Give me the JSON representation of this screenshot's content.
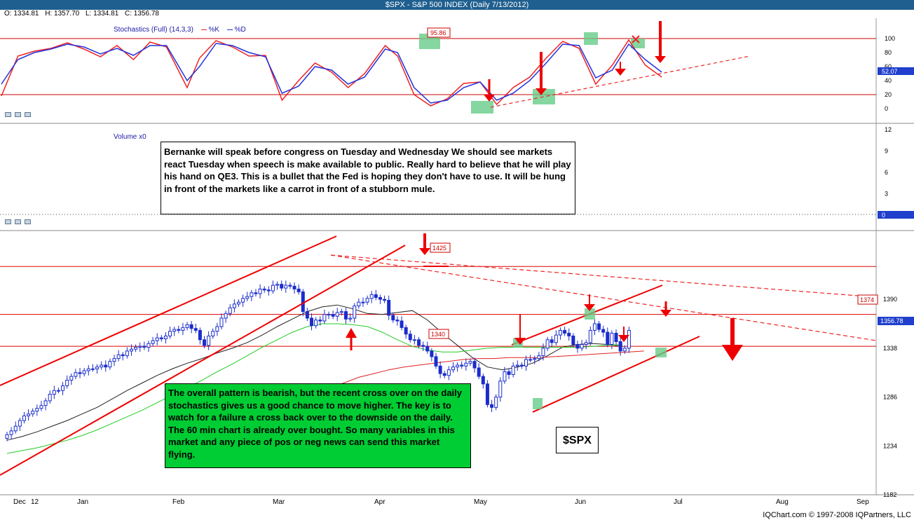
{
  "header": {
    "title": "$SPX - S&P 500 INDEX (Daily 7/13/2012)",
    "ohlc": [
      "O: 1334.81",
      "H: 1357.70",
      "L: 1334.81",
      "C: 1356.78"
    ]
  },
  "stochastic_panel": {
    "label": "Stochastics (Full) (14,3,3)",
    "k_legend": "%K",
    "d_legend": "%D",
    "last_value": "52.07",
    "callout": "95.86",
    "k_color": "#ee2222",
    "d_color": "#2233dd"
  },
  "volume_panel": {
    "label": "Volume x0",
    "last_value": "0"
  },
  "price_panel": {
    "last_value": "1356.78",
    "callouts": [
      "1425",
      "1340",
      "1374"
    ]
  },
  "notes": {
    "bernanke": "Bernanke will speak before congress on Tuesday and Wednesday We should see markets react Tuesday when speech is make available to public. Really hard to believe that he will play his hand on QE3. This is a bullet that the Fed is hoping they don't have to use. It will be hung in front of the markets like a carrot in front of a stubborn mule.",
    "pattern": "The overall pattern is bearish, but the recent cross over on the daily stochastics gives us a good chance to move higher. The key is to watch for a failure a cross  back over to the downside on the daily. The 60 min chart is already over bought. So many variables in this market and any piece of pos or neg news can send this market flying.",
    "symbol": "$SPX"
  },
  "footer": "IQChart.com © 1997-2008 IQPartners, LLC",
  "chart_data": [
    {
      "type": "line",
      "title": "Stochastics (Full) (14,3,3)",
      "yticks": [
        "100",
        "80",
        "60",
        "40",
        "20",
        "0"
      ],
      "ylim": [
        -8,
        108
      ],
      "xlim": [
        0,
        161
      ],
      "series": [
        {
          "name": "%K",
          "color": "#ee2222",
          "x": [
            0,
            4,
            8,
            12,
            16,
            20,
            24,
            28,
            32,
            36,
            40,
            45,
            48,
            52,
            56,
            60,
            64,
            68,
            72,
            76,
            80,
            84,
            88,
            93,
            96,
            100,
            104,
            108,
            112,
            116,
            120,
            124,
            128,
            132,
            136,
            140,
            144,
            148,
            152,
            156,
            160
          ],
          "values": [
            18,
            75,
            82,
            86,
            94,
            85,
            74,
            90,
            70,
            95,
            88,
            30,
            72,
            97,
            88,
            75,
            76,
            12,
            40,
            65,
            52,
            30,
            50,
            90,
            75,
            20,
            4,
            14,
            36,
            38,
            6,
            30,
            45,
            72,
            96,
            86,
            35,
            62,
            98,
            62,
            45
          ]
        },
        {
          "name": "%D",
          "color": "#2233dd",
          "x": [
            0,
            4,
            8,
            12,
            16,
            20,
            24,
            28,
            32,
            36,
            40,
            45,
            48,
            52,
            56,
            60,
            64,
            68,
            72,
            76,
            80,
            84,
            88,
            93,
            96,
            100,
            104,
            108,
            112,
            116,
            120,
            124,
            128,
            132,
            136,
            140,
            144,
            148,
            152,
            156,
            160
          ],
          "values": [
            35,
            70,
            80,
            85,
            92,
            88,
            78,
            86,
            76,
            90,
            90,
            40,
            60,
            93,
            90,
            80,
            74,
            22,
            32,
            60,
            55,
            35,
            45,
            85,
            80,
            30,
            8,
            12,
            30,
            38,
            12,
            22,
            40,
            65,
            92,
            90,
            44,
            55,
            92,
            70,
            52
          ]
        }
      ]
    },
    {
      "type": "bar",
      "title": "Volume x0",
      "yticks": [
        "12",
        "9",
        "6",
        "3",
        "0"
      ],
      "ylim": [
        0,
        12
      ],
      "values": []
    },
    {
      "type": "candlestick",
      "title": "$SPX",
      "x_ticks": [
        "Dec",
        "12",
        "Jan",
        "Feb",
        "Mar",
        "Apr",
        "May",
        "Jun",
        "Jul",
        "Aug",
        "Sep"
      ],
      "yticks": [
        "1390",
        "1338",
        "1286",
        "1234",
        "1182"
      ],
      "ylim": [
        1182,
        1455
      ],
      "xlim": [
        0,
        160
      ],
      "close": [
        1246,
        1250,
        1255,
        1261,
        1266,
        1268,
        1271,
        1274,
        1277,
        1282,
        1289,
        1293,
        1293,
        1298,
        1304,
        1308,
        1312,
        1311,
        1314,
        1316,
        1316,
        1318,
        1320,
        1318,
        1324,
        1327,
        1331,
        1330,
        1335,
        1337,
        1339,
        1340,
        1339,
        1343,
        1346,
        1349,
        1348,
        1351,
        1356,
        1358,
        1357,
        1360,
        1363,
        1359,
        1357,
        1347,
        1341,
        1351,
        1356,
        1361,
        1370,
        1375,
        1381,
        1385,
        1387,
        1391,
        1393,
        1397,
        1396,
        1401,
        1400,
        1399,
        1405,
        1406,
        1402,
        1405,
        1404,
        1401,
        1398,
        1377,
        1370,
        1362,
        1368,
        1367,
        1374,
        1374,
        1372,
        1376,
        1377,
        1369,
        1370,
        1383,
        1387,
        1387,
        1391,
        1395,
        1392,
        1390,
        1389,
        1373,
        1368,
        1367,
        1360,
        1353,
        1347,
        1347,
        1341,
        1340,
        1335,
        1329,
        1319,
        1311,
        1309,
        1315,
        1318,
        1320,
        1319,
        1322,
        1324,
        1317,
        1308,
        1300,
        1278,
        1275,
        1286,
        1303,
        1313,
        1310,
        1319,
        1320,
        1319,
        1326,
        1326,
        1327,
        1330,
        1338,
        1347,
        1344,
        1352,
        1357,
        1354,
        1351,
        1342,
        1338,
        1342,
        1344,
        1357,
        1364,
        1358,
        1355,
        1342,
        1354,
        1345,
        1335,
        1338,
        1357
      ],
      "sma_short": [
        1240,
        1244,
        1249,
        1255,
        1261,
        1268,
        1275,
        1284,
        1293,
        1301,
        1309,
        1316,
        1322,
        1327,
        1333,
        1338,
        1344,
        1352,
        1361,
        1369,
        1377,
        1382,
        1384,
        1380,
        1375,
        1374,
        1376,
        1378,
        1368,
        1354,
        1341,
        1328,
        1318,
        1315,
        1318,
        1322,
        1330,
        1339,
        1342,
        1343,
        1342,
        1340
      ],
      "sma_long": [
        1226,
        1229,
        1232,
        1236,
        1240,
        1245,
        1251,
        1258,
        1265,
        1272,
        1280,
        1288,
        1296,
        1304,
        1313,
        1321,
        1330,
        1339,
        1347,
        1355,
        1361,
        1364,
        1364,
        1363,
        1361,
        1355,
        1347,
        1340,
        1336,
        1334,
        1334,
        1336,
        1338,
        1339,
        1339,
        1339,
        1339,
        1339,
        1339,
        1340,
        1341,
        1342
      ],
      "sma_200": [
        1239,
        1245,
        1251,
        1257,
        1262,
        1268,
        1273,
        1279,
        1285,
        1290,
        1296,
        1301,
        1307,
        1311,
        1315,
        1318,
        1320,
        1322,
        1324,
        1326,
        1327,
        1327,
        1328,
        1328,
        1328,
        1329,
        1330,
        1331,
        1332,
        1333,
        1334,
        1335
      ],
      "levels": [
        1425,
        1374,
        1340
      ],
      "last_value": 1356.78
    }
  ]
}
